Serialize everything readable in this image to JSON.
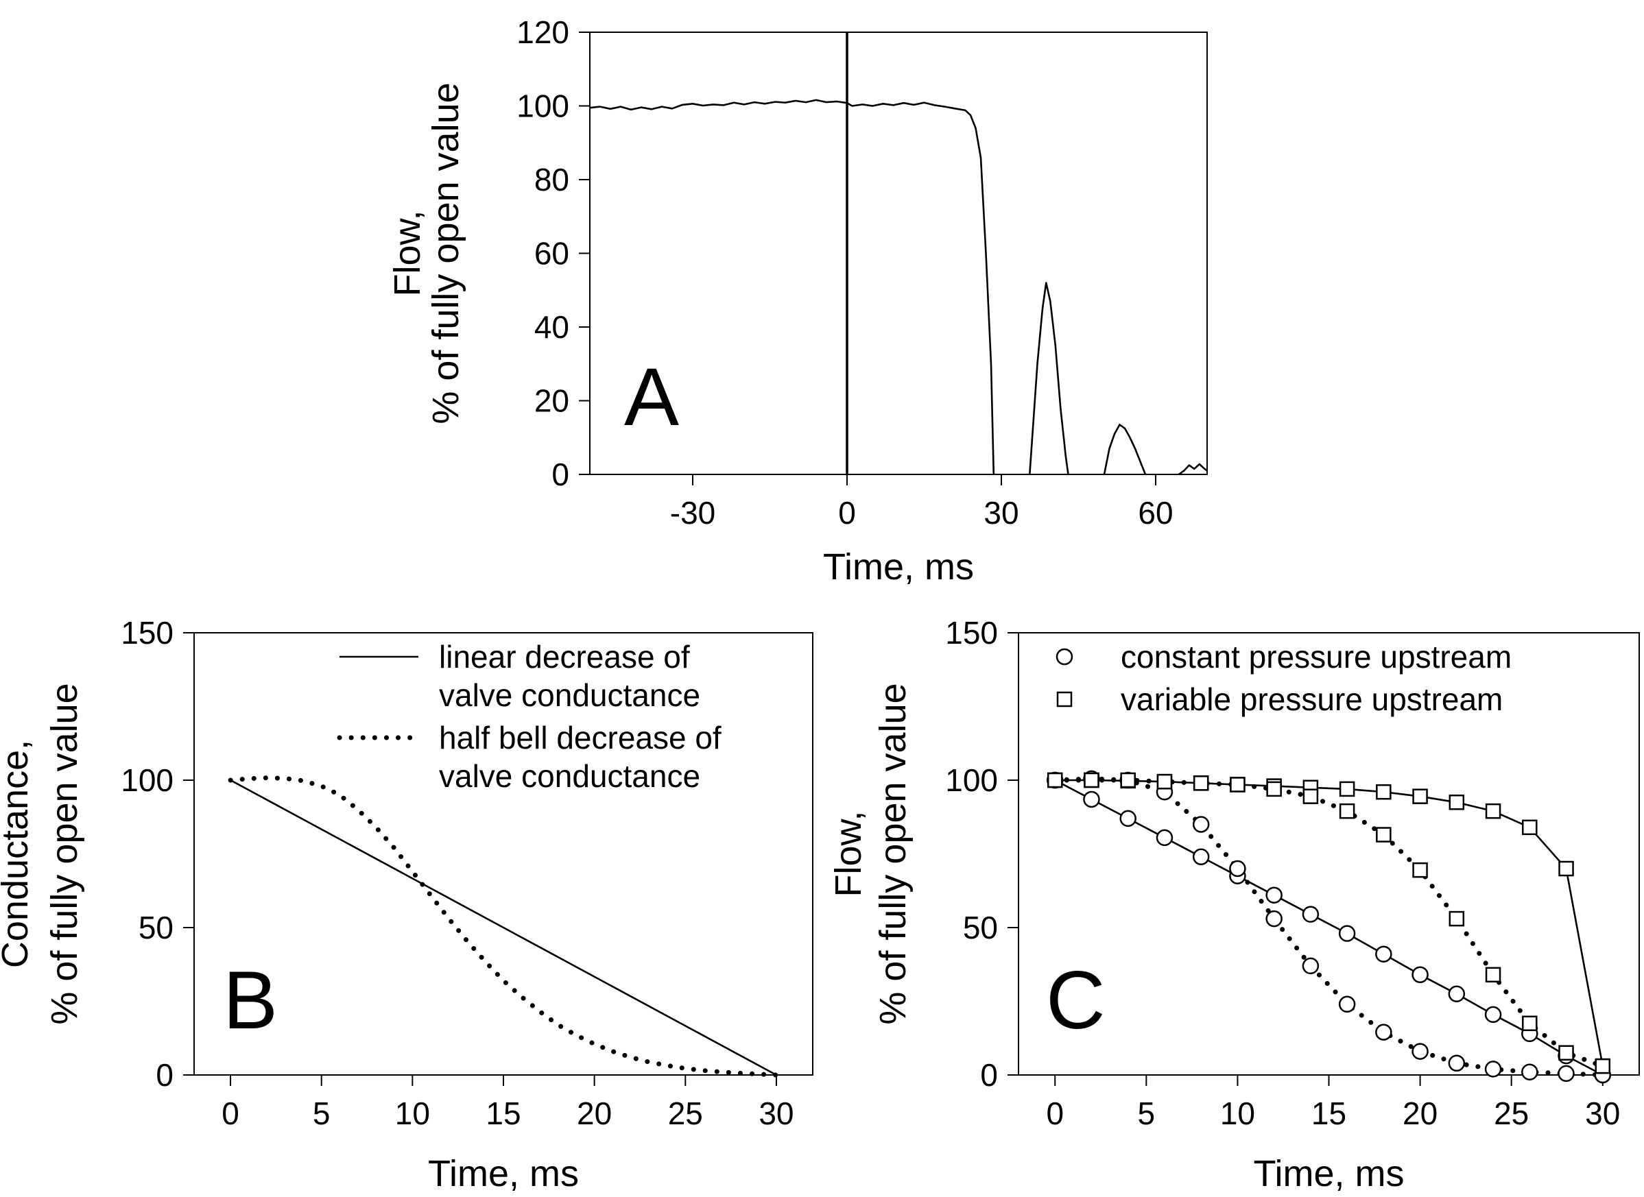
{
  "chart_data": [
    {
      "panel": "A",
      "type": "line",
      "panel_label": "A",
      "xlabel": "Time, ms",
      "ylabel_lines": [
        "Flow,",
        "% of fully open value"
      ],
      "xlim": [
        -50,
        70
      ],
      "ylim": [
        0,
        120
      ],
      "xticks": [
        -30,
        0,
        30,
        60
      ],
      "xtick_labels": [
        "-30",
        "0",
        "30",
        "60"
      ],
      "yticks": [
        0,
        20,
        40,
        60,
        80,
        100,
        120
      ],
      "ytick_labels": [
        "0",
        "20",
        "40",
        "60",
        "80",
        "100",
        "120"
      ],
      "vline_x": 0,
      "series": [
        {
          "style": "solid",
          "segments": [
            [
              [
                -50,
                99.5
              ],
              [
                -48,
                99.8
              ],
              [
                -46,
                99.2
              ],
              [
                -44,
                99.8
              ],
              [
                -42,
                99.0
              ],
              [
                -40,
                99.6
              ],
              [
                -38,
                99.1
              ],
              [
                -36,
                99.8
              ],
              [
                -34,
                99.3
              ],
              [
                -32,
                100.3
              ],
              [
                -30,
                100.6
              ],
              [
                -28,
                100.1
              ],
              [
                -26,
                100.4
              ],
              [
                -24,
                100.2
              ],
              [
                -22,
                100.9
              ],
              [
                -20,
                100.4
              ],
              [
                -18,
                101.0
              ],
              [
                -16,
                100.6
              ],
              [
                -14,
                101.1
              ],
              [
                -12,
                100.9
              ],
              [
                -10,
                101.4
              ],
              [
                -8,
                101.0
              ],
              [
                -6,
                101.6
              ],
              [
                -4,
                101.0
              ],
              [
                -2,
                101.2
              ],
              [
                0,
                100.8
              ],
              [
                1,
                100.0
              ],
              [
                3,
                100.4
              ],
              [
                5,
                100.0
              ],
              [
                7,
                100.6
              ],
              [
                9,
                100.2
              ],
              [
                11,
                100.8
              ],
              [
                13,
                100.3
              ],
              [
                15,
                100.9
              ],
              [
                17,
                100.2
              ],
              [
                19,
                99.8
              ],
              [
                21,
                99.3
              ],
              [
                23,
                98.8
              ],
              [
                24,
                97.5
              ],
              [
                25,
                94
              ],
              [
                26,
                86
              ],
              [
                27,
                60
              ],
              [
                28,
                30
              ],
              [
                28.5,
                0
              ]
            ],
            [
              [
                35.5,
                0
              ],
              [
                36.5,
                20
              ],
              [
                37,
                30
              ],
              [
                38,
                45
              ],
              [
                38.7,
                52
              ],
              [
                39.5,
                47
              ],
              [
                40.5,
                35
              ],
              [
                41.5,
                18
              ],
              [
                42.5,
                5
              ],
              [
                43,
                0
              ]
            ],
            [
              [
                50,
                0
              ],
              [
                51,
                7
              ],
              [
                52,
                11
              ],
              [
                53,
                13.5
              ],
              [
                54,
                12.5
              ],
              [
                55,
                10
              ],
              [
                56,
                7
              ],
              [
                57,
                3.5
              ],
              [
                58,
                0
              ]
            ],
            [
              [
                64.5,
                0
              ],
              [
                65.5,
                1
              ],
              [
                66.5,
                2.5
              ],
              [
                67.5,
                1.5
              ],
              [
                68.5,
                2.8
              ],
              [
                69.5,
                1.5
              ],
              [
                70,
                1
              ]
            ]
          ]
        }
      ]
    },
    {
      "panel": "B",
      "type": "line",
      "panel_label": "B",
      "xlabel": "Time, ms",
      "ylabel_lines": [
        "Conductance,",
        "% of fully open value"
      ],
      "xlim": [
        -2,
        32
      ],
      "ylim": [
        0,
        150
      ],
      "xticks": [
        0,
        5,
        10,
        15,
        20,
        25,
        30
      ],
      "xtick_labels": [
        "0",
        "5",
        "10",
        "15",
        "20",
        "25",
        "30"
      ],
      "yticks": [
        0,
        50,
        100,
        150
      ],
      "ytick_labels": [
        "0",
        "50",
        "100",
        "150"
      ],
      "legend_position": "top-right",
      "series": [
        {
          "name_lines": [
            "linear decrease of",
            "valve conductance"
          ],
          "style": "solid",
          "x": [
            0,
            30
          ],
          "y": [
            100,
            0
          ]
        },
        {
          "name_lines": [
            "half bell decrease of",
            "valve conductance"
          ],
          "style": "dotted",
          "x": [
            0,
            1,
            2,
            3,
            4,
            5,
            6,
            7,
            8,
            9,
            10,
            11,
            12,
            13,
            14,
            15,
            16,
            17,
            18,
            19,
            20,
            21,
            22,
            23,
            24,
            25,
            26,
            27,
            28,
            29,
            30
          ],
          "y": [
            100,
            100.5,
            100.8,
            100.6,
            99.8,
            98,
            95,
            90,
            84,
            77,
            69,
            61,
            53,
            45.5,
            38.5,
            32,
            26.5,
            21.5,
            17,
            13.5,
            10.5,
            8,
            6,
            4.4,
            3.2,
            2.2,
            1.5,
            1,
            0.6,
            0.3,
            0
          ]
        }
      ]
    },
    {
      "panel": "C",
      "type": "line",
      "panel_label": "C",
      "xlabel": "Time, ms",
      "ylabel_lines": [
        "Flow,",
        "% of fully open value"
      ],
      "xlim": [
        -2,
        32
      ],
      "ylim": [
        0,
        150
      ],
      "xticks": [
        0,
        5,
        10,
        15,
        20,
        25,
        30
      ],
      "xtick_labels": [
        "0",
        "5",
        "10",
        "15",
        "20",
        "25",
        "30"
      ],
      "yticks": [
        0,
        50,
        100,
        150
      ],
      "ytick_labels": [
        "0",
        "50",
        "100",
        "150"
      ],
      "legend_position": "top-right",
      "legend": [
        {
          "label": "constant pressure upstream",
          "marker": "circle"
        },
        {
          "label": "variable pressure upstream",
          "marker": "square"
        }
      ],
      "series": [
        {
          "marker": "circle",
          "style": "solid",
          "x": [
            0,
            2,
            4,
            6,
            8,
            10,
            12,
            14,
            16,
            18,
            20,
            22,
            24,
            26,
            28,
            30
          ],
          "y": [
            100,
            93.5,
            87,
            80.5,
            74,
            67.5,
            61,
            54.5,
            48,
            41,
            34,
            27.5,
            20.5,
            14,
            6.5,
            0
          ]
        },
        {
          "marker": "circle",
          "style": "dotted",
          "x": [
            0,
            2,
            4,
            6,
            8,
            10,
            12,
            14,
            16,
            18,
            20,
            22,
            24,
            26,
            28,
            30
          ],
          "y": [
            100,
            100.5,
            100,
            96,
            85,
            70,
            53,
            37,
            24,
            14.5,
            8,
            4,
            2,
            1,
            0.5,
            0
          ]
        },
        {
          "marker": "square",
          "style": "solid",
          "x": [
            0,
            2,
            4,
            6,
            8,
            10,
            12,
            14,
            16,
            18,
            20,
            22,
            24,
            26,
            28,
            30
          ],
          "y": [
            100,
            100,
            99.8,
            99.5,
            99,
            98.5,
            98,
            97.5,
            97,
            96,
            94.5,
            92.5,
            89.5,
            84,
            70,
            3
          ]
        },
        {
          "marker": "square",
          "style": "dotted",
          "x": [
            0,
            2,
            4,
            6,
            8,
            10,
            12,
            14,
            16,
            18,
            20,
            22,
            24,
            26,
            28,
            30
          ],
          "y": [
            100,
            100,
            100,
            99.5,
            99,
            98.5,
            97,
            94.5,
            89.5,
            81.5,
            69.5,
            53,
            34,
            17.5,
            7.5,
            3
          ]
        }
      ]
    }
  ]
}
